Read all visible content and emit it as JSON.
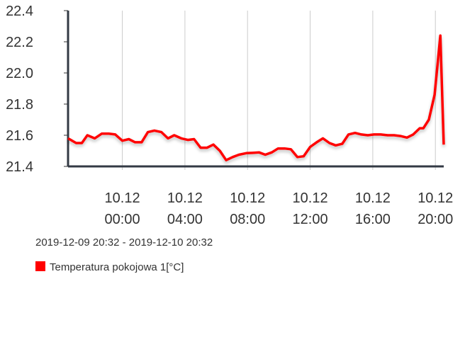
{
  "chart_data": {
    "type": "line",
    "subtitle": "2019-12-09 20:32 - 2019-12-10 20:32",
    "x": [
      "2019-12-09 20:32",
      "2019-12-09 21:03",
      "2019-12-09 21:25",
      "2019-12-09 21:46",
      "2019-12-09 22:14",
      "2019-12-09 22:41",
      "2019-12-09 23:08",
      "2019-12-09 23:33",
      "2019-12-10 00:00",
      "2019-12-10 00:25",
      "2019-12-10 00:49",
      "2019-12-10 01:14",
      "2019-12-10 01:38",
      "2019-12-10 02:03",
      "2019-12-10 02:30",
      "2019-12-10 02:55",
      "2019-12-10 03:19",
      "2019-12-10 03:46",
      "2019-12-10 04:11",
      "2019-12-10 04:35",
      "2019-12-10 05:00",
      "2019-12-10 05:25",
      "2019-12-10 05:49",
      "2019-12-10 06:14",
      "2019-12-10 06:38",
      "2019-12-10 07:03",
      "2019-12-10 07:27",
      "2019-12-10 07:55",
      "2019-12-10 08:19",
      "2019-12-10 08:44",
      "2019-12-10 09:08",
      "2019-12-10 09:33",
      "2019-12-10 09:57",
      "2019-12-10 10:22",
      "2019-12-10 10:46",
      "2019-12-10 11:11",
      "2019-12-10 11:35",
      "2019-12-10 12:00",
      "2019-12-10 12:25",
      "2019-12-10 12:49",
      "2019-12-10 13:14",
      "2019-12-10 13:38",
      "2019-12-10 14:03",
      "2019-12-10 14:27",
      "2019-12-10 14:52",
      "2019-12-10 15:16",
      "2019-12-10 15:41",
      "2019-12-10 16:05",
      "2019-12-10 16:30",
      "2019-12-10 16:57",
      "2019-12-10 17:22",
      "2019-12-10 17:46",
      "2019-12-10 18:11",
      "2019-12-10 18:35",
      "2019-12-10 19:00",
      "2019-12-10 19:14",
      "2019-12-10 19:35",
      "2019-12-10 19:57",
      "2019-12-10 20:19",
      "2019-12-10 20:32"
    ],
    "series": [
      {
        "name": "Temperatura pokojowa 1[°C]",
        "color": "#ff0000",
        "values": [
          21.58,
          21.55,
          21.55,
          21.6,
          21.58,
          21.61,
          21.61,
          21.605,
          21.565,
          21.575,
          21.555,
          21.555,
          21.62,
          21.63,
          21.62,
          21.58,
          21.6,
          21.58,
          21.57,
          21.575,
          21.52,
          21.52,
          21.54,
          21.5,
          21.44,
          21.46,
          21.475,
          21.485,
          21.487,
          21.49,
          21.475,
          21.49,
          21.515,
          21.515,
          21.51,
          21.46,
          21.465,
          21.525,
          21.555,
          21.58,
          21.55,
          21.535,
          21.545,
          21.605,
          21.615,
          21.605,
          21.6,
          21.605,
          21.605,
          21.6,
          21.6,
          21.595,
          21.585,
          21.605,
          21.645,
          21.645,
          21.7,
          21.86,
          22.24,
          21.54
        ]
      }
    ],
    "xlim": [
      "2019-12-09 20:32",
      "2019-12-10 20:32"
    ],
    "xticks": [
      {
        "value": "2019-12-10 00:00",
        "label": [
          "10.12",
          "00:00"
        ]
      },
      {
        "value": "2019-12-10 04:00",
        "label": [
          "10.12",
          "04:00"
        ]
      },
      {
        "value": "2019-12-10 08:00",
        "label": [
          "10.12",
          "08:00"
        ]
      },
      {
        "value": "2019-12-10 12:00",
        "label": [
          "10.12",
          "12:00"
        ]
      },
      {
        "value": "2019-12-10 16:00",
        "label": [
          "10.12",
          "16:00"
        ]
      },
      {
        "value": "2019-12-10 20:00",
        "label": [
          "10.12",
          "20:00"
        ]
      }
    ],
    "ylim": [
      21.4,
      22.4
    ],
    "yticks": [
      {
        "value": 21.4,
        "label": "21.4"
      },
      {
        "value": 21.6,
        "label": "21.6"
      },
      {
        "value": 21.8,
        "label": "21.8"
      },
      {
        "value": 22.0,
        "label": "22.0"
      },
      {
        "value": 22.2,
        "label": "22.2"
      },
      {
        "value": 22.4,
        "label": "22.4"
      }
    ],
    "grid": "x"
  }
}
